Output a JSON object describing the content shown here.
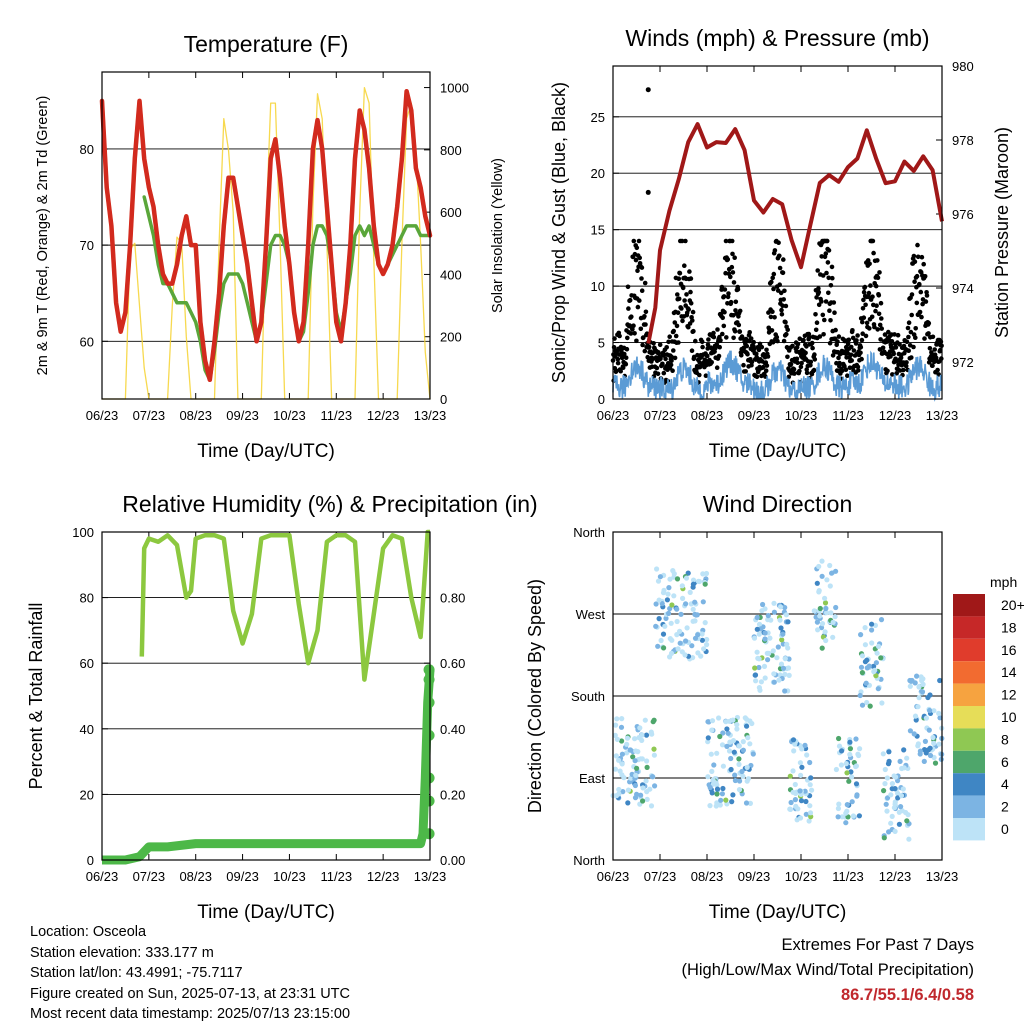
{
  "chart_data": [
    {
      "type": "line",
      "title": "Temperature (F)",
      "xlabel": "Time (Day/UTC)",
      "ylabel": "2m & 9m T (Red, Orange) & 2m Td (Green)",
      "ylabel_right": "Solar Insolation (Yellow)",
      "x_ticks": [
        "06/23",
        "07/23",
        "08/23",
        "09/23",
        "10/23",
        "11/23",
        "12/23",
        "13/23"
      ],
      "ylim": [
        54,
        88
      ],
      "y_ticks": [
        60,
        70,
        80
      ],
      "ylim_right": [
        0,
        1050
      ],
      "y_ticks_right": [
        0,
        200,
        400,
        600,
        800,
        1000
      ],
      "grid": "horizontal",
      "x_days": [
        0.0,
        0.1,
        0.2,
        0.3,
        0.4,
        0.5,
        0.6,
        0.7,
        0.8,
        0.9,
        1.0,
        1.1,
        1.2,
        1.3,
        1.4,
        1.5,
        1.6,
        1.7,
        1.8,
        1.9,
        2.0,
        2.1,
        2.2,
        2.3,
        2.4,
        2.5,
        2.6,
        2.7,
        2.8,
        2.9,
        3.0,
        3.1,
        3.2,
        3.3,
        3.4,
        3.5,
        3.6,
        3.7,
        3.8,
        3.9,
        4.0,
        4.1,
        4.2,
        4.3,
        4.4,
        4.5,
        4.6,
        4.7,
        4.8,
        4.9,
        5.0,
        5.1,
        5.2,
        5.3,
        5.4,
        5.5,
        5.6,
        5.7,
        5.8,
        5.9,
        6.0,
        6.1,
        6.2,
        6.3,
        6.4,
        6.5,
        6.6,
        6.7,
        6.8,
        6.9,
        7.0
      ],
      "series": [
        {
          "color": "#d22a1e",
          "values": [
            85,
            76,
            72,
            64,
            61,
            63,
            70,
            79,
            85,
            79,
            76,
            74,
            70,
            67,
            66,
            66,
            68,
            71,
            73,
            70,
            70,
            62,
            58,
            56,
            60,
            65,
            72,
            77,
            77,
            74,
            71,
            68,
            64,
            60,
            62,
            70,
            79,
            81,
            77,
            72,
            68,
            63,
            60,
            62,
            70,
            80,
            83,
            80,
            74,
            68,
            62,
            60,
            64,
            70,
            79,
            84,
            82,
            78,
            72,
            68,
            67,
            68,
            70,
            74,
            79,
            86,
            84,
            78,
            76,
            73,
            71
          ]
        },
        {
          "color": "#f4a020",
          "values": [
            85,
            76,
            72,
            64,
            61,
            63,
            70,
            79,
            85,
            79,
            76,
            74,
            70,
            67,
            66,
            66,
            68,
            71,
            73,
            70,
            70,
            62,
            58,
            56,
            60,
            65,
            72,
            77,
            77,
            74,
            71,
            68,
            64,
            60,
            62,
            70,
            79,
            81,
            77,
            72,
            68,
            63,
            60,
            62,
            70,
            80,
            83,
            80,
            74,
            68,
            62,
            60,
            64,
            70,
            79,
            84,
            82,
            78,
            72,
            68,
            67,
            68,
            70,
            74,
            79,
            86,
            84,
            78,
            76,
            73,
            71
          ]
        },
        {
          "color": "#5aa63a",
          "values": [
            null,
            null,
            null,
            null,
            null,
            null,
            null,
            null,
            null,
            75,
            73,
            71,
            68,
            66,
            66,
            65,
            64,
            64,
            64,
            63,
            62,
            60,
            57,
            56,
            59,
            63,
            66,
            67,
            67,
            67,
            66,
            64,
            62,
            60,
            62,
            66,
            70,
            71,
            71,
            70,
            68,
            63,
            60,
            61,
            65,
            70,
            72,
            72,
            71,
            68,
            63,
            61,
            64,
            67,
            71,
            72,
            71,
            72,
            70,
            68,
            67,
            68,
            69,
            70,
            71,
            72,
            72,
            72,
            71,
            71,
            71
          ]
        },
        {
          "color": "#f6d230",
          "axis": "right",
          "values": [
            0,
            0,
            0,
            0,
            0,
            0,
            480,
            500,
            300,
            100,
            0,
            0,
            0,
            0,
            0,
            300,
            520,
            500,
            200,
            0,
            0,
            0,
            0,
            0,
            0,
            500,
            900,
            800,
            600,
            0,
            0,
            0,
            0,
            0,
            0,
            550,
            950,
            950,
            500,
            0,
            0,
            0,
            0,
            0,
            0,
            620,
            980,
            900,
            500,
            0,
            0,
            0,
            0,
            0,
            0,
            600,
            1000,
            950,
            450,
            0,
            0,
            0,
            0,
            0,
            500,
            900,
            950,
            800,
            500,
            150,
            0
          ]
        }
      ]
    },
    {
      "type": "scatter",
      "title": "Winds (mph) & Pressure (mb)",
      "xlabel": "Time (Day/UTC)",
      "ylabel": "Sonic/Prop Wind & Gust (Blue, Black)",
      "ylabel_right": "Station Pressure (Maroon)",
      "x_ticks": [
        "06/23",
        "07/23",
        "08/23",
        "09/23",
        "10/23",
        "11/23",
        "12/23",
        "13/23"
      ],
      "ylim": [
        0,
        29.5
      ],
      "y_ticks": [
        0,
        5,
        10,
        15,
        20,
        25
      ],
      "ylim_right": [
        971.0,
        980.0
      ],
      "y_ticks_right": [
        972,
        974,
        976,
        978,
        980
      ],
      "grid": "horizontal",
      "pressure_series": {
        "color": "#a01818",
        "x": [
          0.75,
          0.9,
          1.0,
          1.2,
          1.4,
          1.6,
          1.8,
          2.0,
          2.2,
          2.4,
          2.6,
          2.8,
          3.0,
          3.2,
          3.4,
          3.6,
          3.8,
          4.0,
          4.2,
          4.4,
          4.6,
          4.8,
          5.0,
          5.2,
          5.4,
          5.6,
          5.8,
          6.0,
          6.2,
          6.4,
          6.6,
          6.8,
          7.0
        ],
        "y": [
          972.5,
          973.5,
          975.0,
          976.0,
          977.0,
          978.0,
          978.4,
          977.8,
          978.0,
          977.8,
          978.4,
          977.8,
          976.4,
          976.0,
          976.3,
          976.2,
          975.4,
          974.6,
          975.8,
          976.8,
          977.0,
          976.8,
          977.2,
          977.6,
          978.2,
          977.6,
          976.8,
          977.0,
          977.5,
          977.2,
          977.6,
          977.2,
          975.8
        ]
      },
      "wind_series": {
        "color": "#5b9bd5",
        "note_level_by_day": [
          1.5,
          1.2,
          2.0,
          1.0,
          1.5,
          2.0,
          1.5,
          3.0
        ]
      },
      "gust_series": {
        "color": "#000000",
        "peak": 27.4
      }
    },
    {
      "type": "line",
      "title": "Relative Humidity (%) & Precipitation (in)",
      "xlabel": "Time (Day/UTC)",
      "ylabel": "Percent & Total Rainfall",
      "x_ticks": [
        "06/23",
        "07/23",
        "08/23",
        "09/23",
        "10/23",
        "11/23",
        "12/23",
        "13/23"
      ],
      "ylim": [
        0,
        100
      ],
      "y_ticks": [
        0,
        20,
        40,
        60,
        80,
        100
      ],
      "ylim_right": [
        0,
        1.0
      ],
      "y_ticks_right": [
        "0.00",
        "0.20",
        "0.40",
        "0.60",
        "0.80"
      ],
      "grid": "horizontal",
      "rh": {
        "color": "#8cc83f",
        "x": [
          0.85,
          0.9,
          1.0,
          1.2,
          1.4,
          1.6,
          1.8,
          1.9,
          2.0,
          2.2,
          2.4,
          2.6,
          2.8,
          3.0,
          3.2,
          3.4,
          3.6,
          3.8,
          4.0,
          4.2,
          4.4,
          4.6,
          4.8,
          5.0,
          5.2,
          5.4,
          5.6,
          5.8,
          6.0,
          6.2,
          6.4,
          6.6,
          6.8,
          6.95,
          7.0
        ],
        "y": [
          62,
          95,
          98,
          97,
          99,
          96,
          80,
          82,
          98,
          99,
          99,
          98,
          76,
          66,
          75,
          98,
          99,
          99,
          99,
          78,
          60,
          70,
          97,
          99,
          99,
          97,
          55,
          75,
          95,
          99,
          98,
          80,
          68,
          100,
          100
        ]
      },
      "precip": {
        "color": "#4db848",
        "x": [
          0.0,
          0.5,
          0.8,
          1.0,
          1.4,
          2.0,
          3.0,
          4.0,
          5.0,
          6.0,
          6.8,
          6.85,
          6.9,
          6.95,
          7.0
        ],
        "y": [
          0.0,
          0.0,
          0.01,
          0.04,
          0.04,
          0.05,
          0.05,
          0.05,
          0.05,
          0.05,
          0.05,
          0.08,
          0.25,
          0.48,
          0.58
        ]
      }
    },
    {
      "type": "scatter",
      "title": "Wind Direction",
      "xlabel": "Time (Day/UTC)",
      "ylabel": "Direction (Colored By Speed)",
      "x_ticks": [
        "06/23",
        "07/23",
        "08/23",
        "09/23",
        "10/23",
        "11/23",
        "12/23",
        "13/23"
      ],
      "y_ticks": [
        "North",
        "West",
        "South",
        "East",
        "North"
      ],
      "grid": "horizontal",
      "legend_title": "mph",
      "legend_labels": [
        "20+",
        "18",
        "16",
        "14",
        "12",
        "10",
        "8",
        "6",
        "4",
        "2",
        "0"
      ],
      "legend_colors": [
        "#a01818",
        "#c62828",
        "#e03c2c",
        "#f26b30",
        "#f6a340",
        "#e6dd58",
        "#8fc853",
        "#4ea66b",
        "#3f86c4",
        "#7cb4e3",
        "#bde3f7"
      ],
      "legend_position": "right"
    }
  ],
  "info": {
    "location": "Location: Osceola",
    "elevation": "Station elevation: 333.177 m",
    "latlon": "Station lat/lon: 43.4991; -75.7117",
    "created": "Figure created on Sun, 2025-07-13, at 23:31 UTC",
    "recent": "Most recent data timestamp: 2025/07/13 23:15:00"
  },
  "extremes": {
    "title": "Extremes For Past 7 Days",
    "subtitle": "(High/Low/Max Wind/Total Precipitation)",
    "values": "86.7/55.1/6.4/0.58"
  }
}
